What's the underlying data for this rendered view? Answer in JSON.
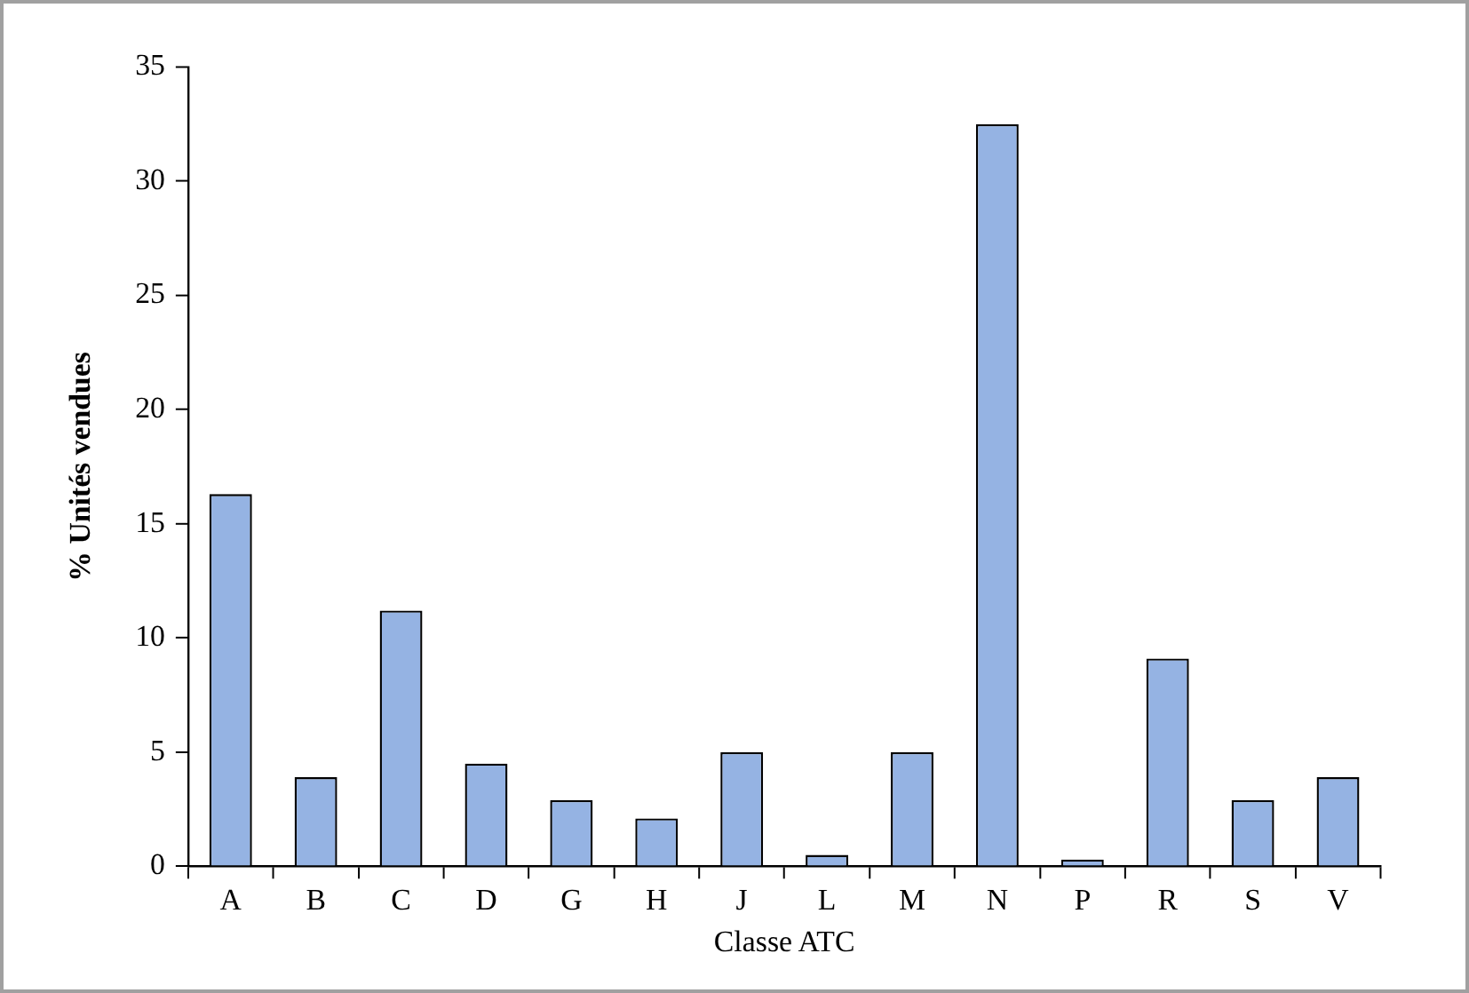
{
  "chart_data": {
    "type": "bar",
    "xlabel": "Classe ATC",
    "ylabel": "% Unités vendues",
    "categories": [
      "A",
      "B",
      "C",
      "D",
      "G",
      "H",
      "J",
      "L",
      "M",
      "N",
      "P",
      "R",
      "S",
      "V"
    ],
    "values": [
      16.3,
      3.9,
      11.2,
      4.5,
      2.9,
      2.1,
      5.0,
      0.5,
      5.0,
      32.5,
      0.3,
      9.1,
      2.9,
      3.9
    ],
    "color": "#95b3e3",
    "ylim": [
      0,
      35
    ],
    "yticks": [
      0,
      5,
      10,
      15,
      20,
      25,
      30,
      35
    ],
    "grid": false,
    "legend": false
  }
}
